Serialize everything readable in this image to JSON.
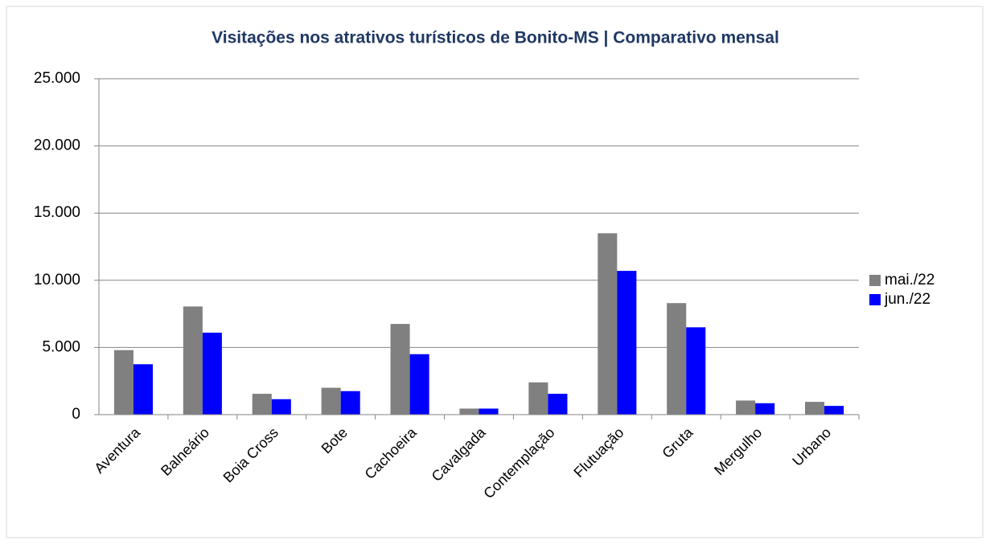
{
  "chart_data": {
    "type": "bar",
    "title": "Visitações nos atrativos turísticos de Bonito-MS | Comparativo mensal",
    "categories": [
      "Aventura",
      "Balneário",
      "Boia Cross",
      "Bote",
      "Cachoeira",
      "Cavalgada",
      "Contemplação",
      "Flutuação",
      "Gruta",
      "Mergulho",
      "Urbano"
    ],
    "series": [
      {
        "name": "mai./22",
        "color": "#808080",
        "values": [
          4800,
          8050,
          1550,
          2000,
          6750,
          450,
          2400,
          13500,
          8300,
          1050,
          950
        ]
      },
      {
        "name": "jun./22",
        "color": "#0000ff",
        "values": [
          3750,
          6100,
          1150,
          1750,
          4500,
          450,
          1550,
          10700,
          6500,
          850,
          650
        ]
      }
    ],
    "ylim": [
      0,
      25000
    ],
    "yticks": [
      0,
      {
        "value": 5000,
        "label": "5.000"
      },
      {
        "value": 10000,
        "label": "10.000"
      },
      {
        "value": 15000,
        "label": "15.000"
      },
      {
        "value": 20000,
        "label": "20.000"
      },
      {
        "value": 25000,
        "label": "25.000"
      }
    ],
    "grid": true,
    "legend": "right"
  }
}
